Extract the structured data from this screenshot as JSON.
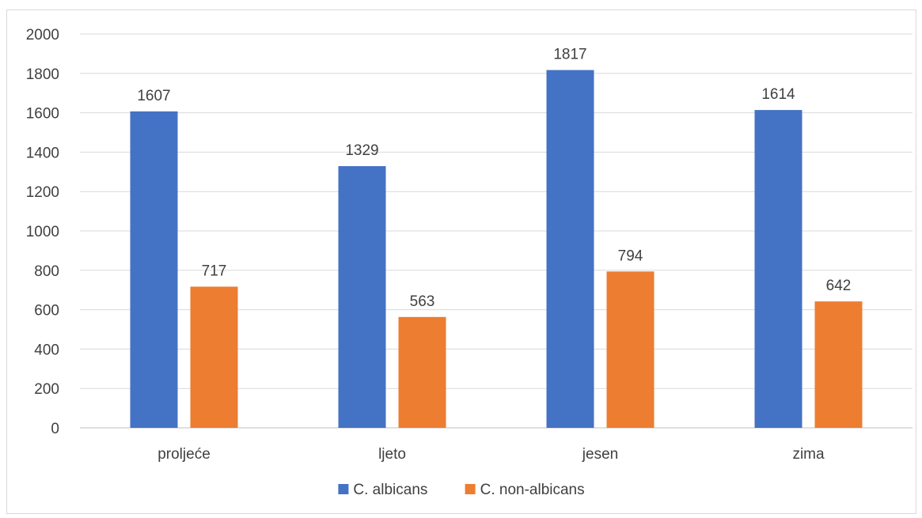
{
  "chart_data": {
    "type": "bar",
    "categories": [
      "proljeće",
      "ljeto",
      "jesen",
      "zima"
    ],
    "series": [
      {
        "name": "C. albicans",
        "values": [
          1607,
          1329,
          1817,
          1614
        ],
        "color": "#4472C4"
      },
      {
        "name": "C. non-albicans",
        "values": [
          717,
          563,
          794,
          642
        ],
        "color": "#ED7D31"
      }
    ],
    "ylim": [
      0,
      2000
    ],
    "yticks": [
      0,
      200,
      400,
      600,
      800,
      1000,
      1200,
      1400,
      1600,
      1800,
      2000
    ],
    "grid": true,
    "legend_position": "bottom",
    "data_labels": true
  }
}
